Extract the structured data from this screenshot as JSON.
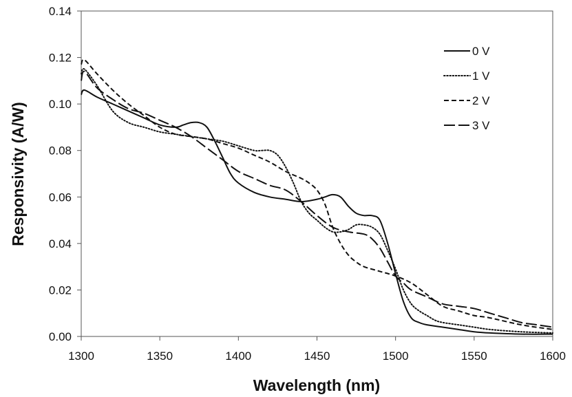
{
  "chart_data": {
    "type": "line",
    "title": "",
    "xlabel": "Wavelength (nm)",
    "ylabel": "Responsivity (A/W)",
    "xlim": [
      1300,
      1600
    ],
    "ylim": [
      0,
      0.14
    ],
    "xticks": [
      1300,
      1350,
      1400,
      1450,
      1500,
      1550,
      1600
    ],
    "xtick_labels": [
      "1300",
      "1350",
      "1400",
      "1450",
      "1500",
      "1550",
      "1600"
    ],
    "yticks": [
      0,
      0.02,
      0.04,
      0.06,
      0.08,
      0.1,
      0.12,
      0.14
    ],
    "ytick_labels": [
      "0.00",
      "0.02",
      "0.04",
      "0.06",
      "0.08",
      "0.10",
      "0.12",
      "0.14"
    ],
    "grid": false,
    "legend_position": "top-right",
    "series": [
      {
        "name": "0 V",
        "style": "solid",
        "x": [
          1300,
          1302,
          1310,
          1320,
          1330,
          1340,
          1350,
          1360,
          1365,
          1370,
          1375,
          1380,
          1385,
          1390,
          1395,
          1400,
          1410,
          1420,
          1430,
          1440,
          1450,
          1455,
          1460,
          1465,
          1470,
          1475,
          1480,
          1485,
          1490,
          1495,
          1500,
          1505,
          1510,
          1515,
          1520,
          1530,
          1540,
          1550,
          1560,
          1580,
          1600
        ],
        "y": [
          0.104,
          0.106,
          0.103,
          0.1,
          0.097,
          0.094,
          0.091,
          0.09,
          0.091,
          0.092,
          0.092,
          0.09,
          0.084,
          0.077,
          0.07,
          0.066,
          0.062,
          0.06,
          0.059,
          0.058,
          0.059,
          0.06,
          0.061,
          0.06,
          0.056,
          0.053,
          0.052,
          0.052,
          0.05,
          0.04,
          0.027,
          0.015,
          0.008,
          0.006,
          0.005,
          0.004,
          0.003,
          0.002,
          0.0015,
          0.001,
          0.001
        ]
      },
      {
        "name": "1 V",
        "style": "dotted",
        "x": [
          1300,
          1302,
          1310,
          1320,
          1330,
          1340,
          1350,
          1360,
          1370,
          1380,
          1390,
          1400,
          1410,
          1415,
          1420,
          1425,
          1430,
          1435,
          1440,
          1445,
          1450,
          1455,
          1460,
          1465,
          1470,
          1475,
          1480,
          1485,
          1490,
          1495,
          1500,
          1505,
          1510,
          1515,
          1520,
          1525,
          1530,
          1540,
          1550,
          1560,
          1580,
          1600
        ],
        "y": [
          0.113,
          0.115,
          0.108,
          0.097,
          0.092,
          0.09,
          0.088,
          0.087,
          0.086,
          0.085,
          0.084,
          0.082,
          0.08,
          0.08,
          0.08,
          0.078,
          0.073,
          0.066,
          0.058,
          0.053,
          0.05,
          0.047,
          0.045,
          0.045,
          0.046,
          0.048,
          0.048,
          0.047,
          0.044,
          0.037,
          0.029,
          0.02,
          0.014,
          0.011,
          0.009,
          0.007,
          0.006,
          0.005,
          0.004,
          0.003,
          0.002,
          0.0015
        ]
      },
      {
        "name": "2 V",
        "style": "dashed",
        "x": [
          1300,
          1302,
          1310,
          1320,
          1330,
          1340,
          1350,
          1360,
          1370,
          1380,
          1390,
          1400,
          1410,
          1420,
          1430,
          1440,
          1445,
          1450,
          1455,
          1460,
          1465,
          1470,
          1475,
          1480,
          1490,
          1500,
          1510,
          1520,
          1530,
          1540,
          1550,
          1560,
          1580,
          1600
        ],
        "y": [
          0.117,
          0.119,
          0.113,
          0.106,
          0.1,
          0.095,
          0.09,
          0.087,
          0.086,
          0.085,
          0.083,
          0.081,
          0.078,
          0.075,
          0.071,
          0.068,
          0.066,
          0.063,
          0.057,
          0.047,
          0.04,
          0.035,
          0.032,
          0.03,
          0.028,
          0.026,
          0.023,
          0.018,
          0.013,
          0.011,
          0.009,
          0.008,
          0.005,
          0.003
        ]
      },
      {
        "name": "3 V",
        "style": "long-dash",
        "x": [
          1300,
          1302,
          1310,
          1320,
          1330,
          1340,
          1350,
          1360,
          1370,
          1380,
          1390,
          1400,
          1410,
          1420,
          1430,
          1440,
          1450,
          1460,
          1470,
          1480,
          1485,
          1490,
          1495,
          1500,
          1505,
          1510,
          1520,
          1530,
          1540,
          1550,
          1560,
          1570,
          1580,
          1590,
          1600
        ],
        "y": [
          0.11,
          0.114,
          0.107,
          0.102,
          0.098,
          0.096,
          0.093,
          0.09,
          0.086,
          0.081,
          0.076,
          0.071,
          0.068,
          0.065,
          0.063,
          0.058,
          0.052,
          0.047,
          0.045,
          0.044,
          0.042,
          0.038,
          0.032,
          0.026,
          0.023,
          0.02,
          0.017,
          0.014,
          0.013,
          0.012,
          0.01,
          0.008,
          0.006,
          0.005,
          0.004
        ]
      }
    ]
  }
}
